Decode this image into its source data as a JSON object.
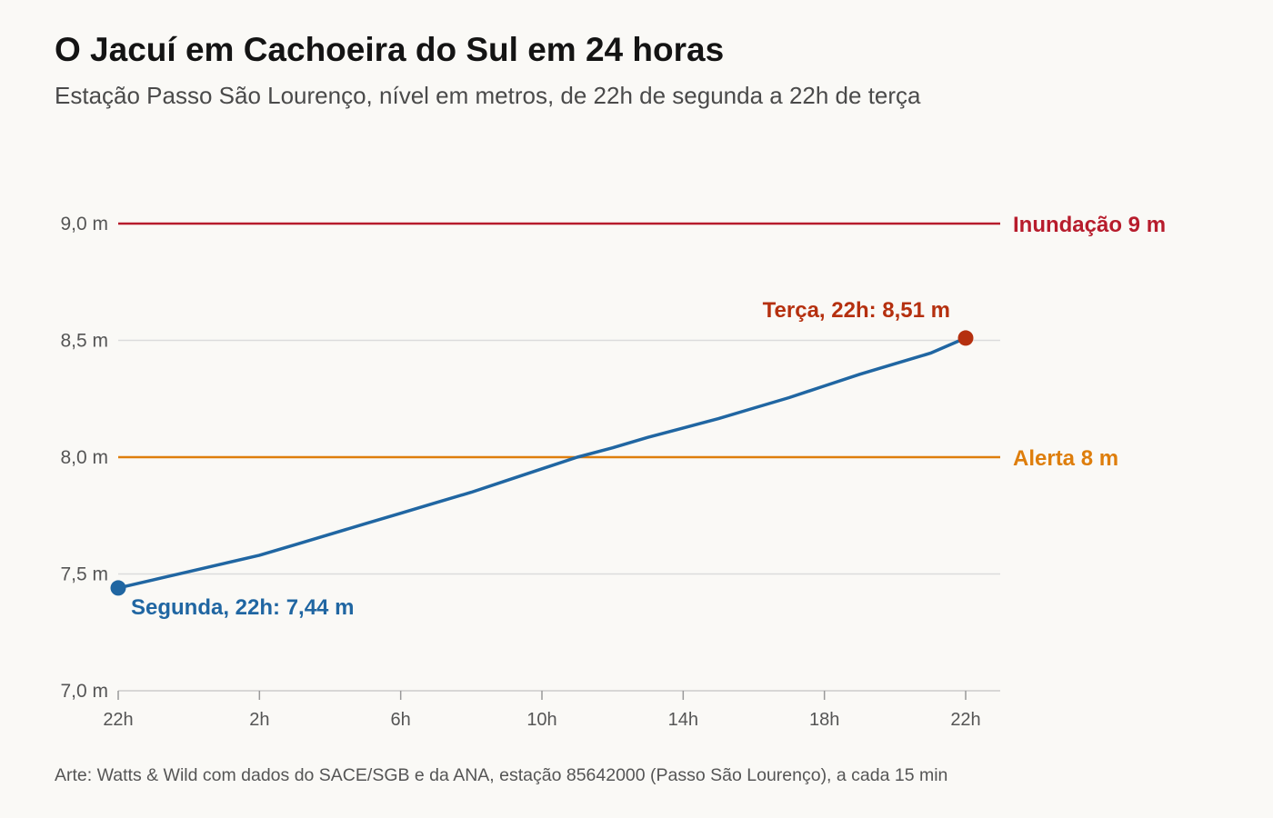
{
  "title": "O Jacuí em Cachoeira do Sul em 24 horas",
  "subtitle": "Estação Passo São Lourenço, nível em metros, de 22h de segunda a 22h de terça",
  "source": "Arte: Watts & Wild com dados do SACE/SGB e da ANA, estação 85642000 (Passo São Lourenço), a cada 15 min",
  "colors": {
    "series": "#2066a2",
    "end_point": "#b5300f",
    "flood": "#b71c2c",
    "alert": "#de7e0c",
    "grid": "#dcdcdc",
    "axis_text": "#555555"
  },
  "chart_data": {
    "type": "line",
    "x_tick_labels": [
      "22h",
      "2h",
      "6h",
      "10h",
      "14h",
      "18h",
      "22h"
    ],
    "x_tick_hours": [
      0,
      4,
      8,
      12,
      16,
      20,
      24
    ],
    "xlim": [
      0,
      24
    ],
    "ylim": [
      7.0,
      9.0
    ],
    "y_ticks": [
      7.0,
      7.5,
      8.0,
      8.5,
      9.0
    ],
    "y_tick_labels": [
      "7,0 m",
      "7,5 m",
      "8,0 m",
      "8,5 m",
      "9,0 m"
    ],
    "grid": true,
    "series": [
      {
        "x_hours": [
          0,
          1,
          2,
          3,
          4,
          5,
          6,
          7,
          8,
          9,
          10,
          11,
          12,
          13,
          14,
          15,
          16,
          17,
          18,
          19,
          20,
          21,
          22,
          23,
          24
        ],
        "values": [
          7.44,
          7.475,
          7.51,
          7.545,
          7.58,
          7.625,
          7.67,
          7.715,
          7.76,
          7.805,
          7.85,
          7.9,
          7.95,
          8.0,
          8.04,
          8.085,
          8.125,
          8.165,
          8.21,
          8.255,
          8.305,
          8.355,
          8.4,
          8.445,
          8.51
        ]
      }
    ],
    "reference_lines": [
      {
        "value": 9.0,
        "label": "Inundação 9 m",
        "color": "#b71c2c"
      },
      {
        "value": 8.0,
        "label": "Alerta 8 m",
        "color": "#de7e0c"
      }
    ],
    "annotations": [
      {
        "x_hours": 0,
        "value": 7.44,
        "label": "Segunda, 22h: 7,44 m",
        "color": "#2066a2"
      },
      {
        "x_hours": 24,
        "value": 8.51,
        "label": "Terça, 22h: 8,51 m",
        "color": "#b5300f"
      }
    ]
  }
}
